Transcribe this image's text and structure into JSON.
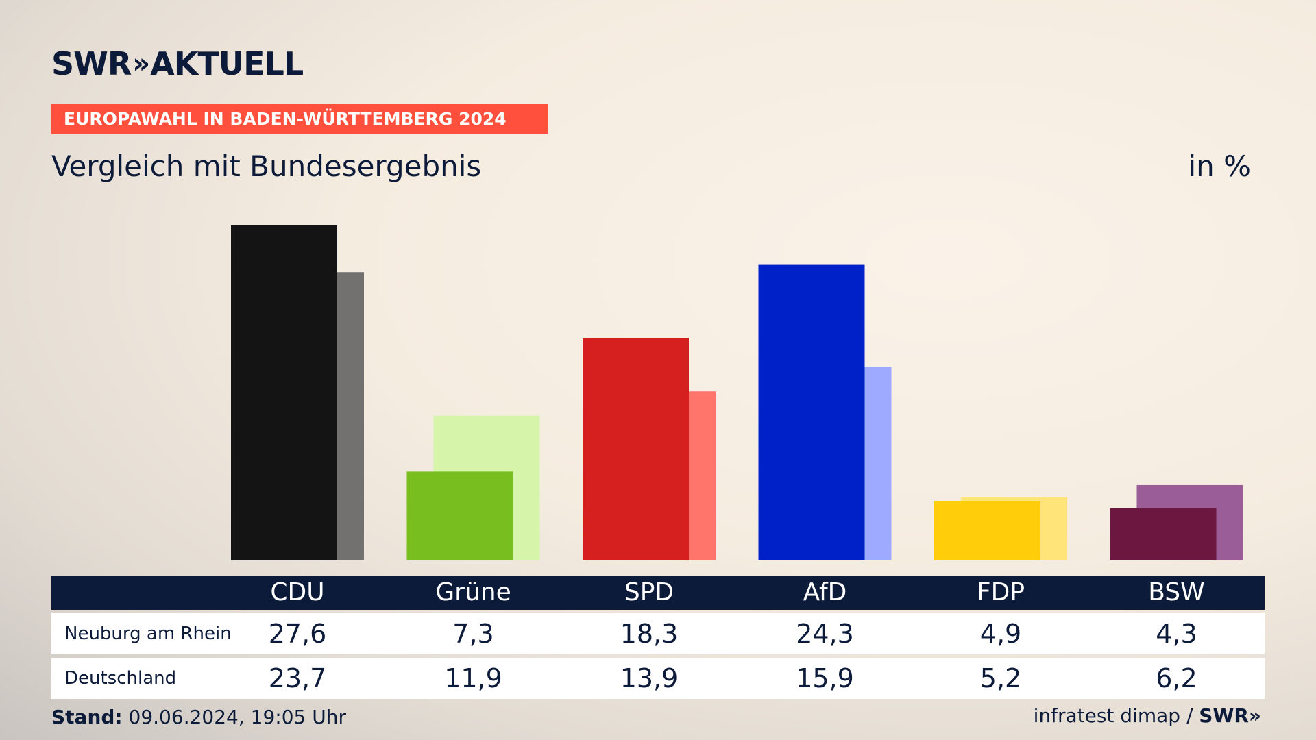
{
  "brand": {
    "logo_text": "SWR",
    "logo_suffix": "AKTUELL",
    "logo_chevrons": "»"
  },
  "banner": "EUROPAWAHL IN BADEN-WÜRTTEMBERG 2024",
  "subtitle": "Vergleich mit Bundesergebnis",
  "unit": "in %",
  "chart_data": {
    "type": "bar",
    "categories": [
      "CDU",
      "Grüne",
      "SPD",
      "AfD",
      "FDP",
      "BSW"
    ],
    "series": [
      {
        "name": "Neuburg am Rhein",
        "values": [
          27.6,
          7.3,
          18.3,
          24.3,
          4.9,
          4.3
        ],
        "colors": [
          "#141414",
          "#78be1e",
          "#d61f1f",
          "#0021c8",
          "#ffcd0a",
          "#6b173f"
        ]
      },
      {
        "name": "Deutschland",
        "values": [
          23.7,
          11.9,
          13.9,
          15.9,
          5.2,
          6.2
        ],
        "colors": [
          "#737170",
          "#d7f4ab",
          "#ff756b",
          "#9daaff",
          "#ffe47a",
          "#9b5d97"
        ]
      }
    ],
    "ylim": [
      0,
      27.6
    ],
    "grid": false,
    "legend": "none"
  },
  "table": {
    "rows": [
      {
        "label": "Neuburg am Rhein",
        "values": [
          "27,6",
          "7,3",
          "18,3",
          "24,3",
          "4,9",
          "4,3"
        ]
      },
      {
        "label": "Deutschland",
        "values": [
          "23,7",
          "11,9",
          "13,9",
          "15,9",
          "5,2",
          "6,2"
        ]
      }
    ]
  },
  "footer": {
    "stand_label": "Stand:",
    "stand_value": "09.06.2024, 19:05 Uhr",
    "source": "infratest dimap /",
    "source_brand": "SWR»"
  }
}
